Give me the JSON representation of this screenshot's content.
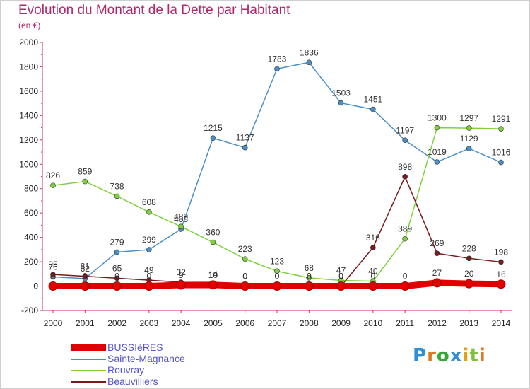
{
  "title": "Evolution du Montant de la Dette par Habitant",
  "subtitle": "(en €)",
  "logo": "Proxiti",
  "chart_data": {
    "type": "line",
    "x": [
      2000,
      2001,
      2002,
      2003,
      2004,
      2005,
      2006,
      2007,
      2008,
      2009,
      2010,
      2011,
      2012,
      2013,
      2014
    ],
    "ylim": [
      -200,
      2000
    ],
    "yticks": [
      -200,
      0,
      200,
      400,
      600,
      800,
      1000,
      1200,
      1400,
      1600,
      1800,
      2000
    ],
    "grid": false,
    "legend_position": "bottom-left",
    "series": [
      {
        "name": "Sainte-Magnance",
        "color": "#4a90c8",
        "values": [
          76,
          62,
          279,
          299,
          468,
          1215,
          1137,
          1783,
          1836,
          1503,
          1451,
          1197,
          1019,
          1129,
          1016
        ],
        "labels": [
          "76",
          "62",
          "279",
          "299",
          "468",
          "1215",
          "1137",
          "1783",
          "1836",
          "1503",
          "1451",
          "1197",
          "1019",
          "1129",
          "1016"
        ]
      },
      {
        "name": "Rouvray",
        "color": "#7ed13a",
        "values": [
          826,
          859,
          738,
          608,
          489,
          360,
          223,
          123,
          68,
          47,
          40,
          389,
          1300,
          1297,
          1291
        ],
        "labels": [
          "826",
          "859",
          "738",
          "608",
          "489",
          "360",
          "223",
          "123",
          "68",
          "47",
          "40",
          "389",
          "1300",
          "1297",
          "1291"
        ]
      },
      {
        "name": "Beauvilliers",
        "color": "#7a1a1a",
        "values": [
          95,
          81,
          65,
          49,
          32,
          14,
          0,
          0,
          0,
          0,
          316,
          898,
          269,
          228,
          198
        ],
        "labels": [
          "95",
          "81",
          "65",
          "49",
          "32",
          "14",
          "0",
          "0",
          "0",
          "0",
          "316",
          "898",
          "269",
          "228",
          "198"
        ]
      },
      {
        "name": "BUSSIèRES",
        "color": "#e00000",
        "values": [
          0,
          0,
          0,
          0,
          9,
          10,
          0,
          0,
          0,
          0,
          0,
          0,
          27,
          20,
          16
        ],
        "labels": [
          "0",
          "0",
          "0",
          "0",
          "9",
          "10",
          "0",
          "0",
          "0",
          "0",
          "0",
          "0",
          "27",
          "20",
          "16"
        ]
      }
    ],
    "legend": [
      "BUSSIèRES",
      "Sainte-Magnance",
      "Rouvray",
      "Beauvilliers"
    ]
  }
}
